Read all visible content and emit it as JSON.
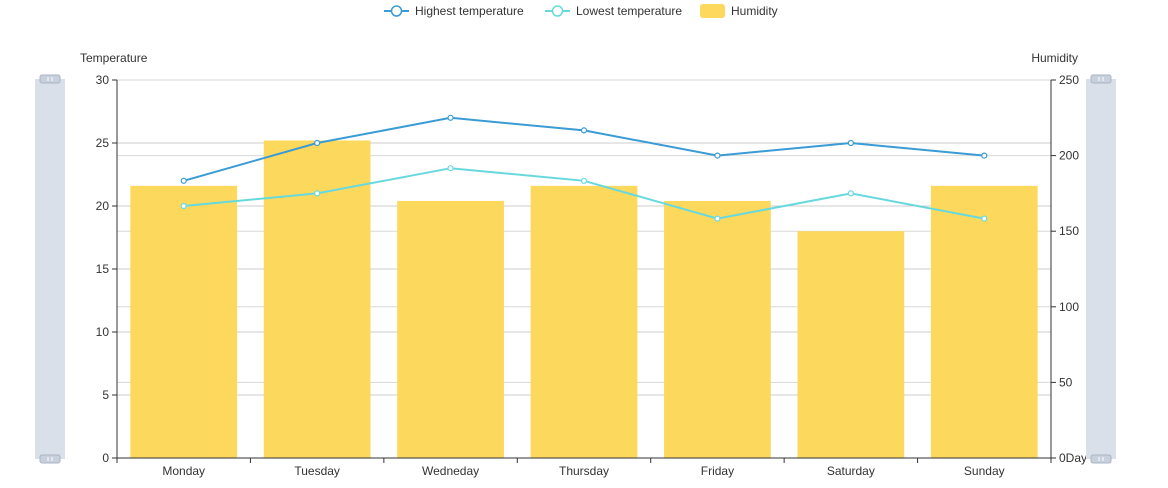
{
  "chart_data": {
    "type": "bar",
    "categories": [
      "Monday",
      "Tuesday",
      "Wedneday",
      "Thursday",
      "Friday",
      "Saturday",
      "Sunday"
    ],
    "series": [
      {
        "name": "Highest temperature",
        "type": "line",
        "axis": "left",
        "color": "#3a9bd5",
        "values": [
          22,
          25,
          27,
          26,
          24,
          25,
          24
        ]
      },
      {
        "name": "Lowest temperature",
        "type": "line",
        "axis": "left",
        "color": "#67d9de",
        "values": [
          20,
          21,
          23,
          22,
          19,
          21,
          19
        ]
      },
      {
        "name": "Humidity",
        "type": "bar",
        "axis": "right",
        "color": "#fcd95c",
        "values": [
          180,
          210,
          170,
          180,
          170,
          150,
          180
        ]
      }
    ],
    "y_left": {
      "label": "Temperature",
      "ylim": [
        0,
        30
      ],
      "ticks": [
        "0",
        "5",
        "10",
        "15",
        "20",
        "25",
        "30"
      ]
    },
    "y_right": {
      "label": "Humidity",
      "ylim": [
        0,
        250
      ],
      "ticks": [
        "0Day",
        "50",
        "100",
        "150",
        "200",
        "250"
      ]
    },
    "xlabel": "",
    "grid": true,
    "legend_position": "top-center",
    "data_zoom": {
      "left": true,
      "right": true
    }
  }
}
